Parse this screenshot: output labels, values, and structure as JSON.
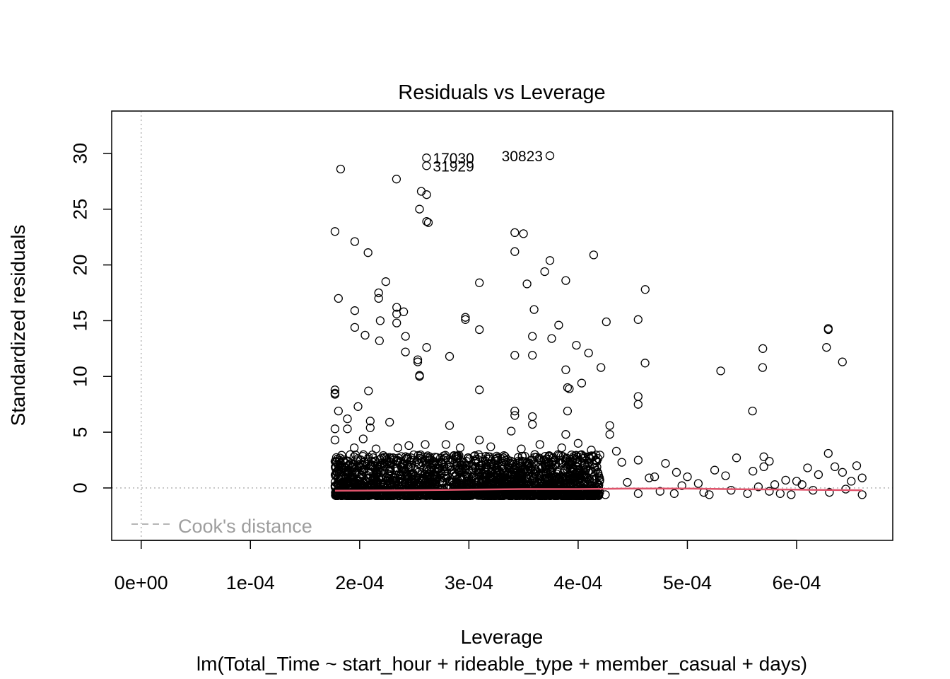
{
  "chart_data": {
    "type": "scatter",
    "title": "Residuals vs Leverage",
    "xlabel": "Leverage",
    "subtitle": "lm(Total_Time ~ start_hour + rideable_type + member_casual + days)",
    "ylabel": "Standardized residuals",
    "xlim": [
      -2.7e-05,
      0.000688
    ],
    "ylim": [
      -4.7,
      33.8
    ],
    "x_ticks": [
      0,
      0.0001,
      0.0002,
      0.0003,
      0.0004,
      0.0005,
      0.0006
    ],
    "x_tick_labels": [
      "0e+00",
      "1e-04",
      "2e-04",
      "3e-04",
      "4e-04",
      "5e-04",
      "6e-04"
    ],
    "y_ticks": [
      0,
      5,
      10,
      15,
      20,
      25,
      30
    ],
    "y_tick_labels": [
      "0",
      "5",
      "10",
      "15",
      "20",
      "25",
      "30"
    ],
    "reference_lines": {
      "h": 0,
      "v": 0
    },
    "legend": {
      "label": "Cook's distance",
      "placement": "bottom-left",
      "style": "dashed",
      "color": "#9e9e9e"
    },
    "smoother_color": "#df536b",
    "point_color": "#000000",
    "labeled_points": [
      {
        "id": "17030",
        "x": 0.0002612,
        "y": 29.6
      },
      {
        "id": "31929",
        "x": 0.0002612,
        "y": 28.9
      },
      {
        "id": "30823",
        "x": 0.0003742,
        "y": 29.8
      }
    ],
    "points": [
      [
        0.0001826,
        28.6
      ],
      [
        0.0002337,
        27.7
      ],
      [
        0.0002564,
        26.6
      ],
      [
        0.0002613,
        26.3
      ],
      [
        0.0002548,
        25.0
      ],
      [
        0.0002613,
        23.9
      ],
      [
        0.0002629,
        23.8
      ],
      [
        0.0001774,
        23.0
      ],
      [
        0.000342,
        22.9
      ],
      [
        0.00035,
        22.8
      ],
      [
        0.0001955,
        22.1
      ],
      [
        0.0002077,
        21.1
      ],
      [
        0.000342,
        21.2
      ],
      [
        0.0004142,
        20.9
      ],
      [
        0.0003742,
        20.4
      ],
      [
        0.0003694,
        19.4
      ],
      [
        0.0003887,
        18.6
      ],
      [
        0.0002239,
        18.5
      ],
      [
        0.0003532,
        18.3
      ],
      [
        0.0003096,
        18.4
      ],
      [
        0.0004614,
        17.8
      ],
      [
        0.0002174,
        17.5
      ],
      [
        0.0002174,
        17.0
      ],
      [
        0.0001806,
        17.0
      ],
      [
        0.0002339,
        16.2
      ],
      [
        0.0003597,
        16.0
      ],
      [
        0.0001955,
        15.9
      ],
      [
        0.0002403,
        15.8
      ],
      [
        0.0002339,
        15.6
      ],
      [
        0.0002968,
        15.3
      ],
      [
        0.0002968,
        15.1
      ],
      [
        0.0004549,
        15.1
      ],
      [
        0.0002188,
        15.0
      ],
      [
        0.0002339,
        14.8
      ],
      [
        0.0004258,
        14.9
      ],
      [
        0.0003822,
        14.6
      ],
      [
        0.0001955,
        14.4
      ],
      [
        0.0003096,
        14.2
      ],
      [
        0.000629,
        14.3
      ],
      [
        0.000629,
        14.2
      ],
      [
        0.000205,
        13.7
      ],
      [
        0.000242,
        13.6
      ],
      [
        0.0003581,
        13.6
      ],
      [
        0.0003758,
        13.4
      ],
      [
        0.0002181,
        13.2
      ],
      [
        0.0003984,
        12.8
      ],
      [
        0.0002613,
        12.6
      ],
      [
        0.0005691,
        12.5
      ],
      [
        0.0006274,
        12.6
      ],
      [
        0.0002419,
        12.2
      ],
      [
        0.0004096,
        12.1
      ],
      [
        0.000342,
        11.9
      ],
      [
        0.0003581,
        11.9
      ],
      [
        0.0002823,
        11.8
      ],
      [
        0.0002532,
        11.5
      ],
      [
        0.0002532,
        11.3
      ],
      [
        0.0006419,
        11.3
      ],
      [
        0.0004613,
        11.2
      ],
      [
        0.0004209,
        10.8
      ],
      [
        0.0005689,
        10.8
      ],
      [
        0.0003887,
        10.6
      ],
      [
        0.0005305,
        10.5
      ],
      [
        0.0002548,
        10.1
      ],
      [
        0.0002548,
        10.0
      ],
      [
        0.0004032,
        9.4
      ],
      [
        0.0003903,
        9.0
      ],
      [
        0.0003919,
        8.9
      ],
      [
        0.0003096,
        8.8
      ],
      [
        0.0002081,
        8.7
      ],
      [
        0.0001774,
        8.8
      ],
      [
        0.0001774,
        8.5
      ],
      [
        0.0001774,
        8.4
      ],
      [
        0.0004549,
        8.2
      ],
      [
        0.0004549,
        7.5
      ],
      [
        0.0001985,
        7.3
      ],
      [
        0.0005596,
        6.9
      ],
      [
        0.0003903,
        6.9
      ],
      [
        0.000342,
        6.9
      ],
      [
        0.0001806,
        6.9
      ],
      [
        0.000342,
        6.5
      ],
      [
        0.0003581,
        6.4
      ],
      [
        0.0001888,
        6.2
      ],
      [
        0.0002097,
        6.0
      ],
      [
        0.0002274,
        5.9
      ],
      [
        0.0003581,
        5.7
      ],
      [
        0.0002823,
        5.6
      ],
      [
        0.000429,
        5.6
      ],
      [
        0.0001774,
        5.3
      ],
      [
        0.0001888,
        5.3
      ],
      [
        0.0002097,
        5.4
      ],
      [
        0.0003387,
        5.1
      ],
      [
        0.0003887,
        4.8
      ],
      [
        0.000429,
        4.8
      ],
      [
        0.0001774,
        4.3
      ],
      [
        0.0002032,
        4.4
      ],
      [
        0.0003096,
        4.3
      ],
      [
        0.0004,
        4.0
      ],
      [
        0.00026,
        3.9
      ],
      [
        0.000279,
        3.9
      ],
      [
        0.00032,
        3.7
      ],
      [
        0.000245,
        3.8
      ],
      [
        0.000215,
        3.5
      ],
      [
        0.000365,
        3.9
      ],
      [
        0.000385,
        3.6
      ],
      [
        0.000412,
        3.4
      ],
      [
        0.000435,
        3.3
      ],
      [
        0.000292,
        3.6
      ],
      [
        0.000348,
        3.5
      ],
      [
        0.000235,
        3.6
      ],
      [
        0.000195,
        3.6
      ],
      [
        0.000629,
        3.1
      ],
      [
        0.000455,
        2.5
      ],
      [
        0.00048,
        2.2
      ],
      [
        0.000525,
        1.6
      ],
      [
        0.000545,
        2.7
      ],
      [
        0.00057,
        2.8
      ],
      [
        0.000575,
        2.4
      ],
      [
        0.00057,
        1.9
      ],
      [
        0.00061,
        1.8
      ],
      [
        0.000635,
        1.9
      ],
      [
        0.000642,
        1.4
      ],
      [
        0.000655,
        2.0
      ],
      [
        0.00066,
        0.9
      ],
      [
        0.00044,
        2.3
      ],
      [
        0.00049,
        1.4
      ],
      [
        0.0005,
        1.0
      ],
      [
        0.000535,
        1.1
      ],
      [
        0.00056,
        1.5
      ],
      [
        0.00059,
        0.7
      ],
      [
        0.00062,
        1.2
      ],
      [
        0.00047,
        1.0
      ],
      [
        0.0006,
        0.6
      ],
      [
        0.00051,
        0.4
      ],
      [
        0.000465,
        0.9
      ],
      [
        0.00058,
        0.3
      ],
      [
        0.000488,
        -0.5
      ],
      [
        0.000515,
        -0.4
      ],
      [
        0.000555,
        -0.5
      ],
      [
        0.000595,
        -0.6
      ],
      [
        0.00063,
        -0.4
      ],
      [
        0.00066,
        -0.6
      ],
      [
        0.000455,
        -0.5
      ],
      [
        0.000425,
        -0.6
      ],
      [
        0.000475,
        -0.3
      ],
      [
        0.00054,
        -0.2
      ],
      [
        0.000575,
        -0.3
      ],
      [
        0.000615,
        -0.2
      ],
      [
        0.000645,
        -0.1
      ],
      [
        0.000495,
        0.2
      ],
      [
        0.000565,
        0.1
      ],
      [
        0.000605,
        0.3
      ],
      [
        0.000445,
        0.5
      ],
      [
        0.00065,
        0.6
      ],
      [
        0.00052,
        -0.6
      ],
      [
        0.000585,
        -0.5
      ]
    ],
    "dense_band": {
      "x_range": [
        0.0001774,
        0.00042
      ],
      "y_range": [
        -0.7,
        3.0
      ],
      "description": "dense cloud of overlapping points"
    }
  }
}
